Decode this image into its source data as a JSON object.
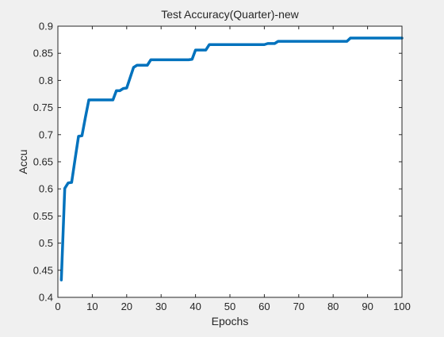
{
  "chart_data": {
    "type": "line",
    "title": "Test Accuracy(Quarter)-new",
    "xlabel": "Epochs",
    "ylabel": "Accu",
    "xlim": [
      0,
      100
    ],
    "ylim": [
      0.4,
      0.9
    ],
    "xticks": [
      0,
      10,
      20,
      30,
      40,
      50,
      60,
      70,
      80,
      90,
      100
    ],
    "xtick_labels": [
      "0",
      "10",
      "20",
      "30",
      "40",
      "50",
      "60",
      "70",
      "80",
      "90",
      "100"
    ],
    "yticks": [
      0.4,
      0.45,
      0.5,
      0.55,
      0.6,
      0.65,
      0.7,
      0.75,
      0.8,
      0.85,
      0.9
    ],
    "ytick_labels": [
      "0.4",
      "0.45",
      "0.5",
      "0.55",
      "0.6",
      "0.65",
      "0.7",
      "0.75",
      "0.8",
      "0.85",
      "0.9"
    ],
    "grid": false,
    "series": [
      {
        "color": "#0072bd",
        "x": [
          1,
          2,
          3,
          4,
          5,
          6,
          7,
          8,
          9,
          10,
          11,
          12,
          13,
          14,
          15,
          16,
          17,
          18,
          19,
          20,
          21,
          22,
          23,
          24,
          25,
          26,
          27,
          28,
          29,
          30,
          31,
          32,
          33,
          34,
          35,
          36,
          37,
          38,
          39,
          40,
          41,
          42,
          43,
          44,
          45,
          46,
          47,
          48,
          49,
          50,
          51,
          52,
          53,
          54,
          55,
          56,
          57,
          58,
          59,
          60,
          61,
          62,
          63,
          64,
          65,
          66,
          67,
          68,
          69,
          70,
          71,
          72,
          73,
          74,
          75,
          76,
          77,
          78,
          79,
          80,
          81,
          82,
          83,
          84,
          85,
          86,
          87,
          88,
          89,
          90,
          91,
          92,
          93,
          94,
          95,
          96,
          97,
          98,
          99,
          100
        ],
        "y": [
          0.432,
          0.601,
          0.611,
          0.612,
          0.655,
          0.697,
          0.698,
          0.732,
          0.764,
          0.764,
          0.764,
          0.764,
          0.764,
          0.764,
          0.764,
          0.764,
          0.781,
          0.781,
          0.785,
          0.786,
          0.805,
          0.824,
          0.828,
          0.828,
          0.828,
          0.828,
          0.838,
          0.838,
          0.838,
          0.838,
          0.838,
          0.838,
          0.838,
          0.838,
          0.838,
          0.838,
          0.838,
          0.838,
          0.839,
          0.856,
          0.856,
          0.856,
          0.856,
          0.866,
          0.866,
          0.866,
          0.866,
          0.866,
          0.866,
          0.866,
          0.866,
          0.866,
          0.866,
          0.866,
          0.866,
          0.866,
          0.866,
          0.866,
          0.866,
          0.866,
          0.868,
          0.868,
          0.868,
          0.872,
          0.872,
          0.872,
          0.872,
          0.872,
          0.872,
          0.872,
          0.872,
          0.872,
          0.872,
          0.872,
          0.872,
          0.872,
          0.872,
          0.872,
          0.872,
          0.872,
          0.872,
          0.872,
          0.872,
          0.872,
          0.878,
          0.878,
          0.878,
          0.878,
          0.878,
          0.878,
          0.878,
          0.878,
          0.878,
          0.878,
          0.878,
          0.878,
          0.878,
          0.878,
          0.878,
          0.878
        ]
      }
    ]
  }
}
